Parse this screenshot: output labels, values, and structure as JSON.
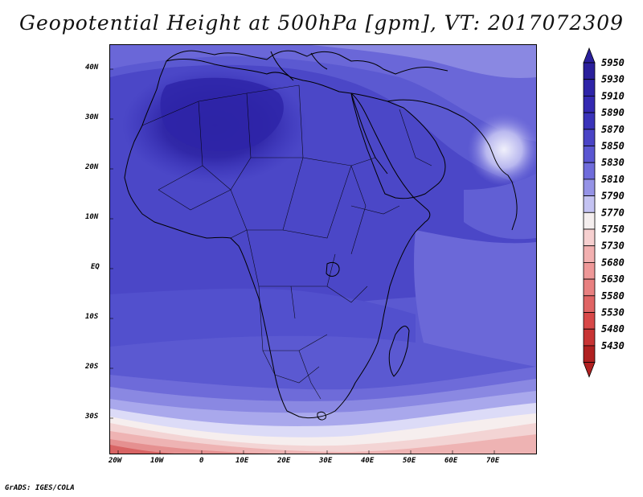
{
  "title": "Geopotential Height at 500hPa [gpm], VT: 2017072309",
  "credit": "GrADS: IGES/COLA",
  "map": {
    "region": "Africa",
    "lat_labels": [
      "40N",
      "30N",
      "20N",
      "10N",
      "EQ",
      "10S",
      "20S",
      "30S"
    ],
    "lon_labels": [
      "20W",
      "10W",
      "0",
      "10E",
      "20E",
      "30E",
      "40E",
      "50E",
      "60E",
      "70E"
    ]
  },
  "colorbar": {
    "levels": [
      "5950",
      "5930",
      "5910",
      "5890",
      "5870",
      "5850",
      "5830",
      "5810",
      "5790",
      "5770",
      "5750",
      "5730",
      "5680",
      "5630",
      "5580",
      "5530",
      "5480",
      "5430"
    ],
    "colors": [
      "#2a1f9c",
      "#2e24a8",
      "#3429b2",
      "#3a33ba",
      "#4a44c6",
      "#5a56d2",
      "#6f6cdb",
      "#9593e6",
      "#c4c3f2",
      "#f4eeee",
      "#f6d0d0",
      "#f2b0b0",
      "#ee9898",
      "#e88080",
      "#e06464",
      "#d84848",
      "#c83434",
      "#b02020"
    ]
  },
  "contours": {
    "sahara_core": "#2e24a8",
    "main_field": "#4744c4",
    "outer_field": "#5f5dd4",
    "indian_ocean_field": "#6e6bd9",
    "tibet_low": "#c9c8f3"
  }
}
